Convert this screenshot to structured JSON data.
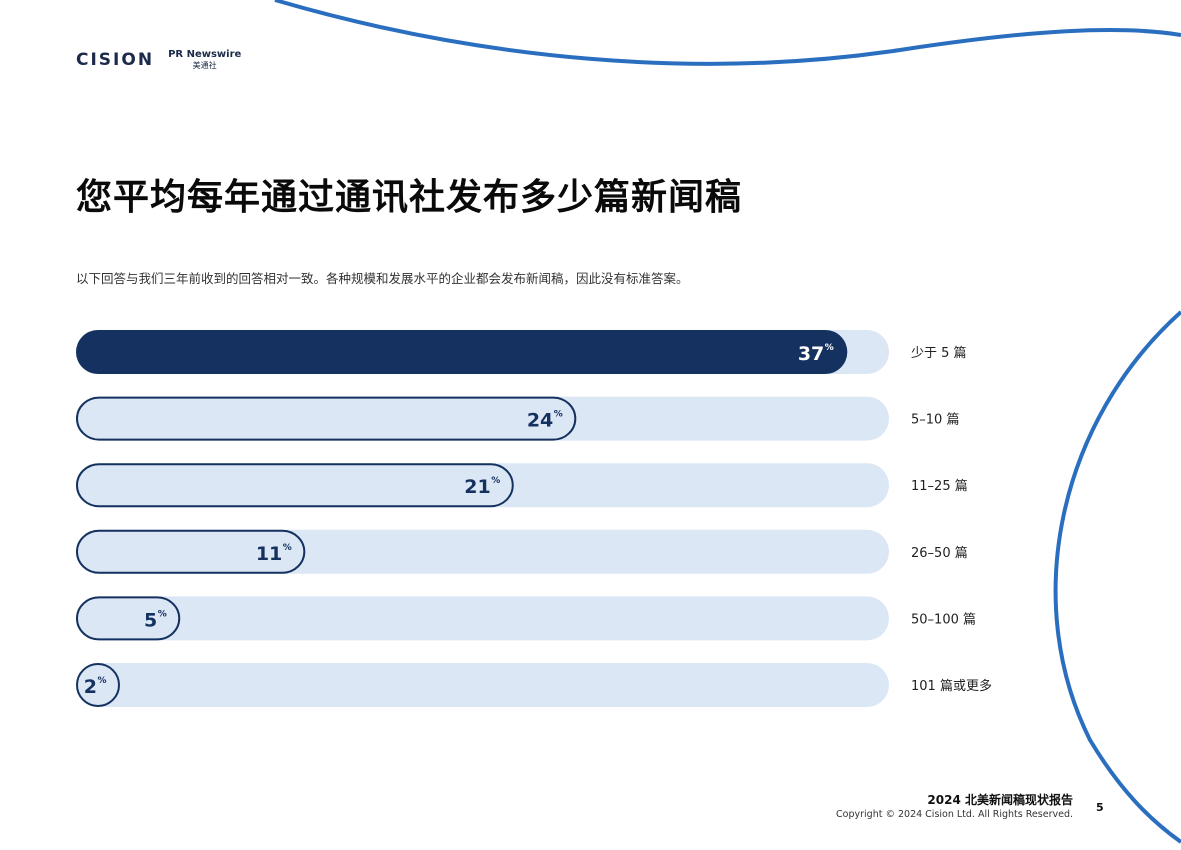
{
  "brand": {
    "cision_logo": "CISION",
    "prn_logo_top": "PR Newswire",
    "prn_logo_bottom": "美通社"
  },
  "page": {
    "title": "您平均每年通过通讯社发布多少篇新闻稿",
    "subtitle": "以下回答与我们三年前收到的回答相对一致。各种规模和发展水平的企业都会发布新闻稿，因此没有标准答案。"
  },
  "chart_data": {
    "type": "bar",
    "orientation": "horizontal",
    "categories": [
      "少于 5 篇",
      "5–10 篇",
      "11–25 篇",
      "26–50 篇",
      "50–100 篇",
      "101 篇或更多"
    ],
    "values": [
      37,
      24,
      21,
      11,
      5,
      2
    ],
    "unit": "%",
    "xlim": [
      0,
      39
    ],
    "highlight_index": 0,
    "colors": {
      "highlight_fill": "#14315f",
      "bar_fill": "#dce7f5",
      "bar_stroke": "#14315f",
      "track": "#dce7f5",
      "highlight_text": "#ffffff",
      "value_text": "#14315f"
    }
  },
  "footer": {
    "report_title": "2024 北美新闻稿现状报告",
    "copyright": "Copyright © 2024 Cision Ltd. All Rights Reserved.",
    "page_number": "5"
  },
  "decor": {
    "accent_color": "#2a6fbf"
  }
}
